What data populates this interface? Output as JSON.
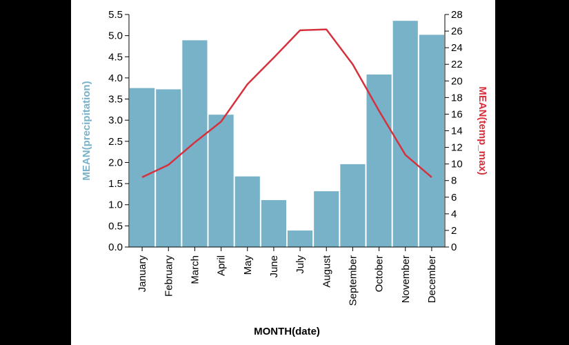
{
  "chart_data": {
    "type": "bar+line",
    "categories": [
      "January",
      "February",
      "March",
      "April",
      "May",
      "June",
      "July",
      "August",
      "September",
      "October",
      "November",
      "December"
    ],
    "series": [
      {
        "kind": "bar",
        "axis": "left",
        "values": [
          3.76,
          3.73,
          4.89,
          3.13,
          1.67,
          1.11,
          0.39,
          1.32,
          1.96,
          4.08,
          5.35,
          5.02
        ]
      },
      {
        "kind": "line",
        "axis": "right",
        "values": [
          8.4,
          9.9,
          12.6,
          15.1,
          19.6,
          22.8,
          26.1,
          26.2,
          22.0,
          16.4,
          11.1,
          8.4
        ]
      }
    ],
    "xlabel": "MONTH(date)",
    "ylabel_left": "MEAN(precipitation)",
    "ylabel_right": "MEAN(temp_max)",
    "ylim_left": [
      0,
      5.5
    ],
    "ylim_right": [
      0,
      28
    ],
    "yticks_left": [
      "0.0",
      "0.5",
      "1.0",
      "1.5",
      "2.0",
      "2.5",
      "3.0",
      "3.5",
      "4.0",
      "4.5",
      "5.0",
      "5.5"
    ],
    "yticks_right": [
      "0",
      "2",
      "4",
      "6",
      "8",
      "10",
      "12",
      "14",
      "16",
      "18",
      "20",
      "22",
      "24",
      "26",
      "28"
    ],
    "grid": false,
    "colors": {
      "bar": "#77b2c8",
      "line": "#d6303d",
      "left_title": "#77b2c8",
      "right_title": "#d6303d"
    }
  }
}
